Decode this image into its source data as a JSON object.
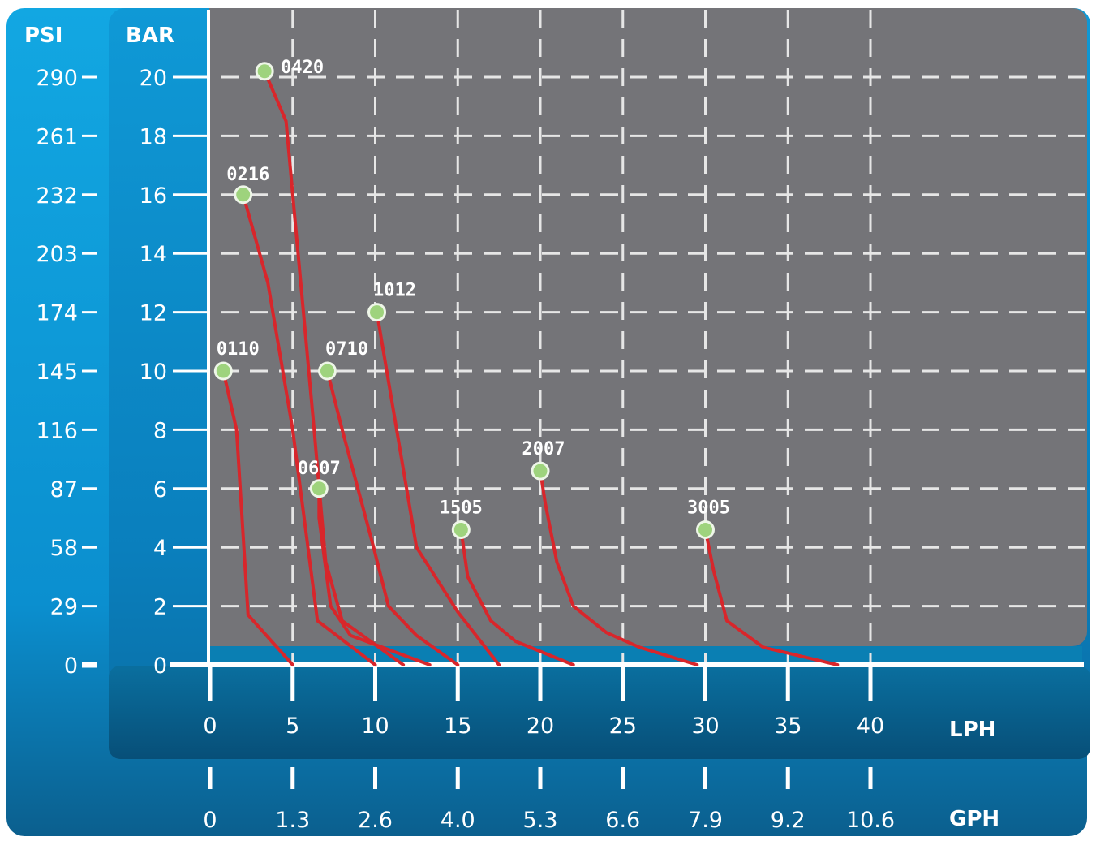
{
  "chart_data": {
    "type": "line",
    "psi_axis": {
      "label": "PSI",
      "ticks": [
        "0",
        "29",
        "58",
        "87",
        "116",
        "145",
        "174",
        "203",
        "232",
        "261",
        "290"
      ]
    },
    "bar_axis": {
      "label": "BAR",
      "ticks": [
        0,
        2,
        4,
        6,
        8,
        10,
        12,
        14,
        16,
        18,
        20
      ],
      "range": [
        0,
        20
      ]
    },
    "lph_axis": {
      "label": "LPH",
      "ticks": [
        0,
        5,
        10,
        15,
        20,
        25,
        30,
        35,
        40
      ],
      "range": [
        0,
        40
      ]
    },
    "gph_axis": {
      "label": "GPH",
      "ticks": [
        "0",
        "1.3",
        "2.6",
        "4.0",
        "5.3",
        "6.6",
        "7.9",
        "9.2",
        "10.6"
      ]
    },
    "grid": true,
    "series": [
      {
        "name": "0110",
        "points": [
          [
            0.8,
            10
          ],
          [
            1.6,
            8
          ],
          [
            2.3,
            1.7
          ],
          [
            5.0,
            0
          ]
        ]
      },
      {
        "name": "0216",
        "points": [
          [
            2.0,
            16
          ],
          [
            3.5,
            13
          ],
          [
            5.0,
            8
          ],
          [
            6.5,
            1.5
          ],
          [
            10.0,
            0
          ]
        ]
      },
      {
        "name": "0420",
        "points": [
          [
            3.3,
            20.2
          ],
          [
            4.6,
            18.5
          ],
          [
            6.3,
            8
          ],
          [
            7.0,
            3.5
          ],
          [
            8.0,
            1.5
          ],
          [
            11.7,
            0
          ]
        ]
      },
      {
        "name": "0607",
        "points": [
          [
            6.6,
            6
          ],
          [
            6.6,
            5
          ],
          [
            7.3,
            2
          ],
          [
            8.5,
            1
          ],
          [
            13.3,
            0
          ]
        ]
      },
      {
        "name": "0710",
        "points": [
          [
            7.1,
            10
          ],
          [
            8.0,
            8
          ],
          [
            9.9,
            4
          ],
          [
            10.8,
            2
          ],
          [
            12.5,
            1
          ],
          [
            15.0,
            0
          ]
        ]
      },
      {
        "name": "1012",
        "points": [
          [
            10.1,
            12
          ],
          [
            12.5,
            4
          ],
          [
            15.0,
            1.8
          ],
          [
            17.5,
            0
          ]
        ]
      },
      {
        "name": "1505",
        "points": [
          [
            15.2,
            4.6
          ],
          [
            15.6,
            3
          ],
          [
            17.0,
            1.5
          ],
          [
            18.5,
            0.8
          ],
          [
            22.0,
            0
          ]
        ]
      },
      {
        "name": "2007",
        "points": [
          [
            20.0,
            6.6
          ],
          [
            20.3,
            5.5
          ],
          [
            21.0,
            3.5
          ],
          [
            22.0,
            2.0
          ],
          [
            24.0,
            1.1
          ],
          [
            26.0,
            0.6
          ],
          [
            29.5,
            0
          ]
        ]
      },
      {
        "name": "3005",
        "points": [
          [
            30.0,
            4.6
          ],
          [
            30.5,
            3.2
          ],
          [
            31.3,
            1.5
          ],
          [
            33.5,
            0.6
          ],
          [
            38.0,
            0
          ]
        ]
      }
    ],
    "colors": {
      "psi_panel": "#0d9fdc",
      "bar_panel": "#0a82c0",
      "plot_area": "#747478",
      "grid": "#e6e6e6",
      "curve": "#d8262b",
      "marker_fill": "#9ed37d",
      "marker_stroke": "#eef6e8",
      "label_text": "#ffffff"
    }
  }
}
